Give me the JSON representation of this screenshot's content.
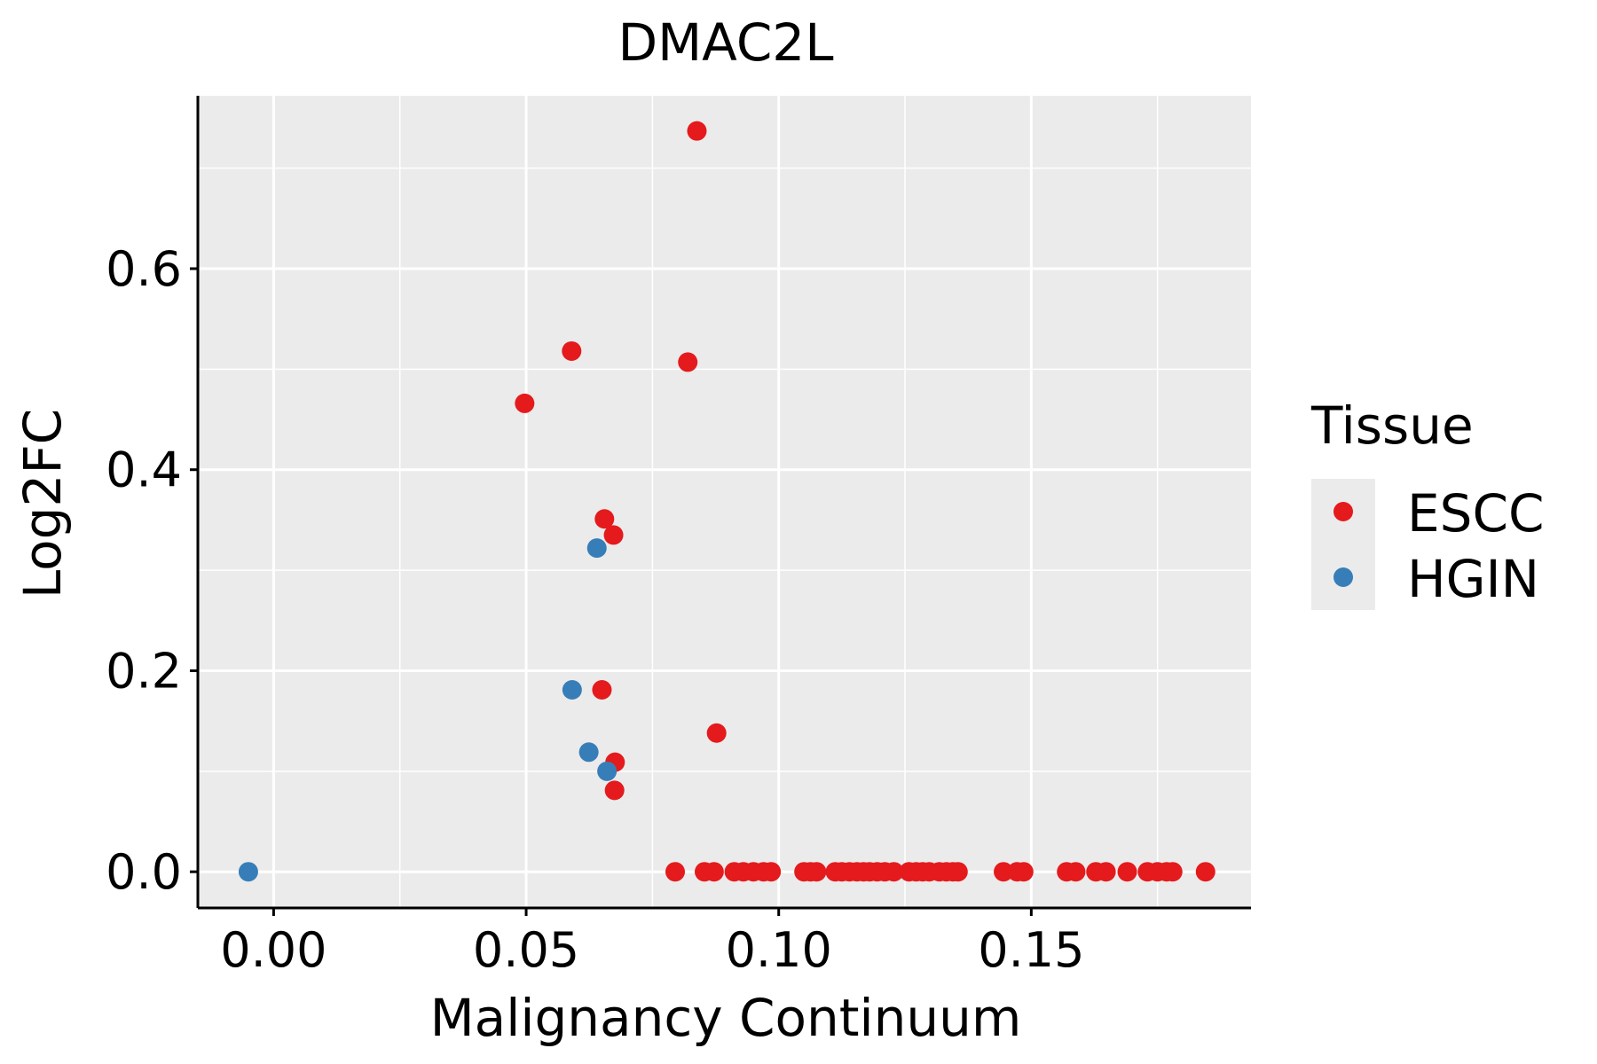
{
  "chart_data": {
    "type": "scatter",
    "title": "DMAC2L",
    "xlabel": "Malignancy Continuum",
    "ylabel": "Log2FC",
    "xlim": [
      -0.015,
      0.1935
    ],
    "ylim": [
      -0.036,
      0.772
    ],
    "xticks": [
      0.0,
      0.05,
      0.1,
      0.15
    ],
    "xtick_labels": [
      "0.00",
      "0.05",
      "0.10",
      "0.15"
    ],
    "yticks": [
      0.0,
      0.2,
      0.4,
      0.6
    ],
    "ytick_labels": [
      "0.0",
      "0.2",
      "0.4",
      "0.6"
    ],
    "grid": true,
    "legend": {
      "title": "Tissue",
      "position": "right",
      "entries": [
        {
          "label": "ESCC",
          "color": "#E41A1C"
        },
        {
          "label": "HGIN",
          "color": "#377EB8"
        }
      ]
    },
    "series": [
      {
        "name": "ESCC",
        "color": "#E41A1C",
        "points": [
          [
            0.0838,
            0.737
          ],
          [
            0.059,
            0.518
          ],
          [
            0.082,
            0.507
          ],
          [
            0.0497,
            0.466
          ],
          [
            0.0655,
            0.351
          ],
          [
            0.0673,
            0.335
          ],
          [
            0.065,
            0.181
          ],
          [
            0.0877,
            0.138
          ],
          [
            0.0676,
            0.109
          ],
          [
            0.0675,
            0.081
          ],
          [
            0.0795,
            0.0
          ],
          [
            0.0853,
            0.0
          ],
          [
            0.0872,
            0.0
          ],
          [
            0.0912,
            0.0
          ],
          [
            0.093,
            0.0
          ],
          [
            0.095,
            0.0
          ],
          [
            0.097,
            0.0
          ],
          [
            0.0985,
            0.0
          ],
          [
            0.105,
            0.0
          ],
          [
            0.1063,
            0.0
          ],
          [
            0.1075,
            0.0
          ],
          [
            0.1112,
            0.0
          ],
          [
            0.1125,
            0.0
          ],
          [
            0.114,
            0.0
          ],
          [
            0.1155,
            0.0
          ],
          [
            0.1168,
            0.0
          ],
          [
            0.118,
            0.0
          ],
          [
            0.1195,
            0.0
          ],
          [
            0.121,
            0.0
          ],
          [
            0.1228,
            0.0
          ],
          [
            0.1258,
            0.0
          ],
          [
            0.1272,
            0.0
          ],
          [
            0.1285,
            0.0
          ],
          [
            0.1298,
            0.0
          ],
          [
            0.1318,
            0.0
          ],
          [
            0.1332,
            0.0
          ],
          [
            0.1345,
            0.0
          ],
          [
            0.1355,
            0.0
          ],
          [
            0.1445,
            0.0
          ],
          [
            0.1472,
            0.0
          ],
          [
            0.1485,
            0.0
          ],
          [
            0.157,
            0.0
          ],
          [
            0.1588,
            0.0
          ],
          [
            0.1628,
            0.0
          ],
          [
            0.1648,
            0.0
          ],
          [
            0.169,
            0.0
          ],
          [
            0.173,
            0.0
          ],
          [
            0.175,
            0.0
          ],
          [
            0.1768,
            0.0
          ],
          [
            0.178,
            0.0
          ],
          [
            0.1845,
            0.0
          ]
        ]
      },
      {
        "name": "HGIN",
        "color": "#377EB8",
        "points": [
          [
            0.064,
            0.322
          ],
          [
            0.0591,
            0.181
          ],
          [
            0.0624,
            0.119
          ],
          [
            0.066,
            0.1
          ],
          [
            -0.005,
            0.0
          ]
        ]
      }
    ]
  },
  "colors": {
    "panel_background": "#EBEBEB",
    "grid": "#FFFFFF",
    "axis_line": "#000000"
  }
}
